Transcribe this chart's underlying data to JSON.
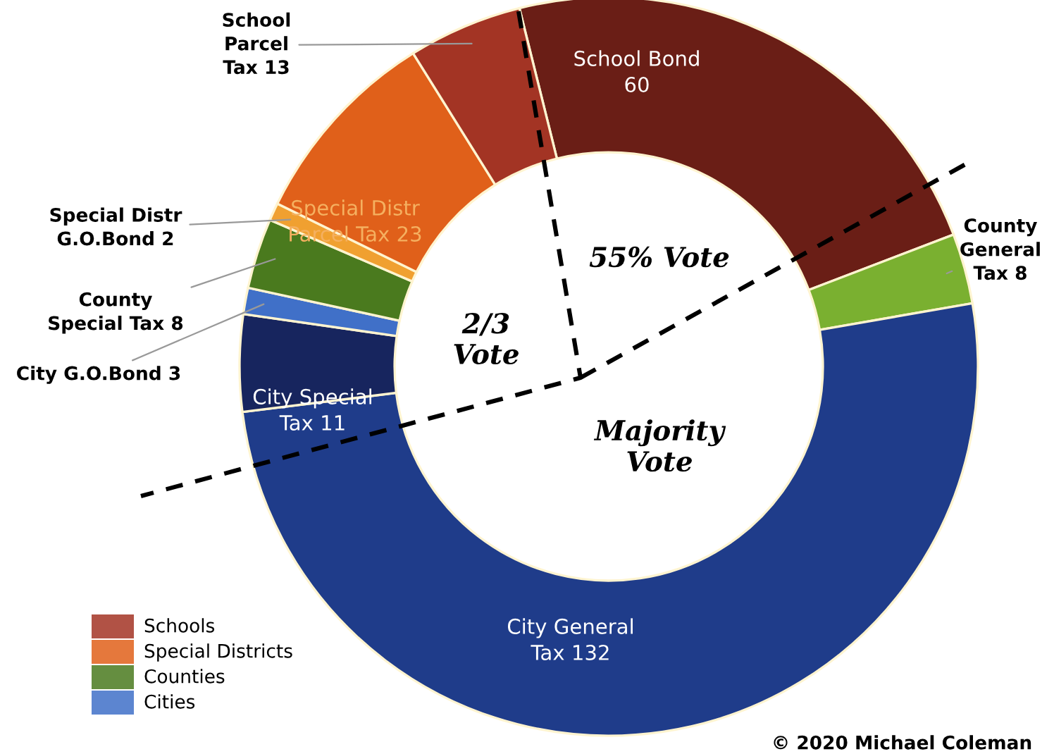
{
  "chart_data": {
    "type": "donut",
    "categories": [
      "School Bond\n60",
      "County\nGeneral\nTax 8",
      "City General\nTax 132",
      "City Special\nTax 11",
      "City G.O.Bond 3",
      "County\nSpecial Tax 8",
      "Special Distr\nG.O.Bond 2",
      "Special Distr\nParcel Tax 23",
      "School\nParcel\nTax 13"
    ],
    "colors": [
      "#6a1e16",
      "#7ab030",
      "#1f3c8a",
      "#17255e",
      "#4070c8",
      "#4a7a1e",
      "#f0a030",
      "#e0601a",
      "#a33424"
    ],
    "values": [
      60,
      8,
      132,
      11,
      3,
      8,
      2,
      23,
      13
    ],
    "annotations": [
      "2/3\nVote",
      "55% Vote",
      "Majority\nVote",
      "© 2020 Michael Coleman",
      "Schools",
      "Special Districts",
      "Counties",
      "Cities"
    ]
  }
}
